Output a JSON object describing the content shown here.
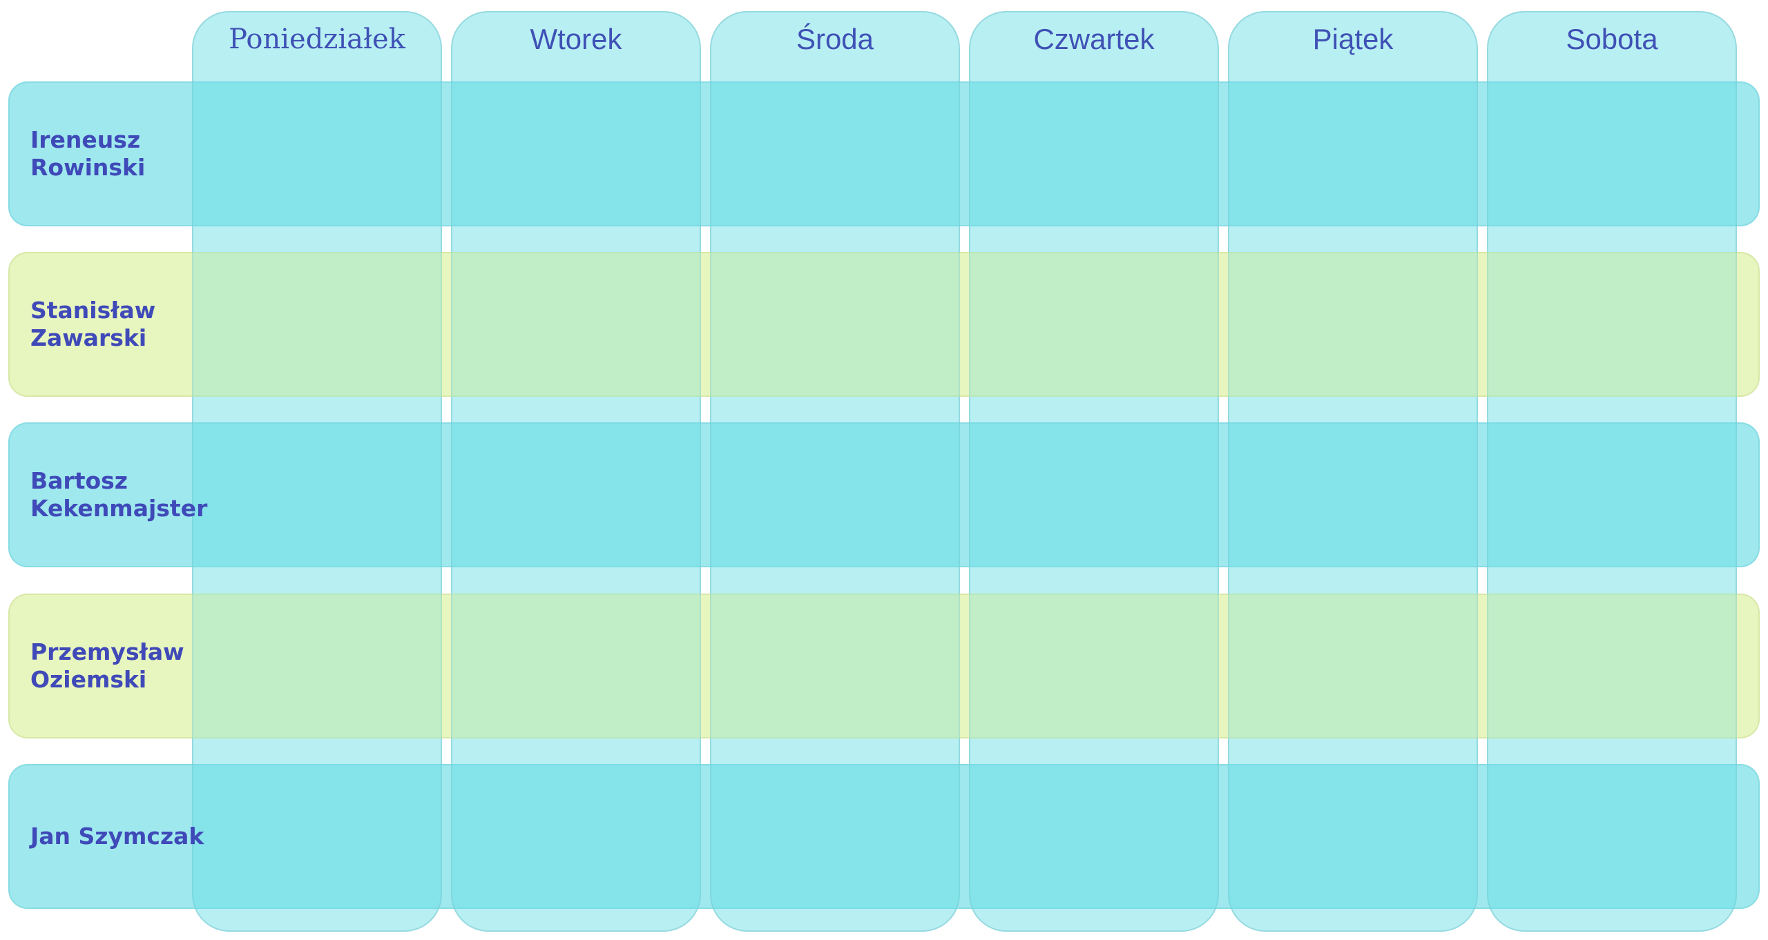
{
  "days": [
    {
      "label": "Poniedziałek"
    },
    {
      "label": "Wtorek"
    },
    {
      "label": "Środa"
    },
    {
      "label": "Czwartek"
    },
    {
      "label": "Piątek"
    },
    {
      "label": "Sobota"
    }
  ],
  "people": [
    {
      "name": "Ireneusz\nRowinski",
      "color": "cyan"
    },
    {
      "name": "Stanisław\nZawarski",
      "color": "lime"
    },
    {
      "name": "Bartosz\nKekenmajster",
      "color": "cyan"
    },
    {
      "name": "Przemysław\nOziemski",
      "color": "lime"
    },
    {
      "name": "Jan Szymczak",
      "color": "cyan"
    }
  ],
  "colors": {
    "text": "#3f51b5",
    "cyan": "#6edde6",
    "lime": "#dff1aa"
  }
}
